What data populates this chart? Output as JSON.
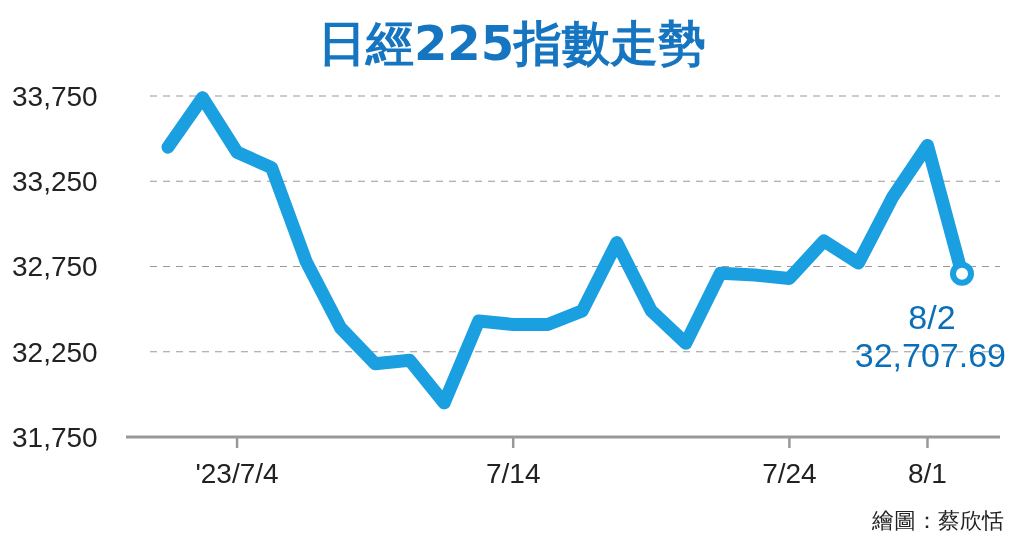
{
  "chart_data": {
    "type": "line",
    "title": "日經225指數走勢",
    "categories": [
      null,
      null,
      "'23/7/4",
      null,
      null,
      null,
      null,
      null,
      null,
      null,
      "7/14",
      null,
      null,
      null,
      null,
      null,
      null,
      null,
      "7/24",
      null,
      null,
      null,
      "8/1",
      null
    ],
    "series": [
      {
        "color": "#1a9fe0",
        "values": [
          33450,
          33740,
          33420,
          33330,
          32780,
          32390,
          32180,
          32200,
          31950,
          32430,
          32410,
          32410,
          32490,
          32890,
          32490,
          32300,
          32710,
          32700,
          32680,
          32900,
          32770,
          33160,
          33460,
          32707.69
        ]
      }
    ],
    "ylim": [
      31750,
      33750
    ],
    "yticks": [
      {
        "value": 31750,
        "label": "31,750"
      },
      {
        "value": 32250,
        "label": "32,250"
      },
      {
        "value": 32750,
        "label": "32,750"
      },
      {
        "value": 33250,
        "label": "33,250"
      },
      {
        "value": 33750,
        "label": "33,750"
      }
    ],
    "grid": "y",
    "marker": "none",
    "line_style": "solid",
    "annotations": [
      "8/2\n32,707.69",
      "繪圖：蔡欣恬"
    ]
  }
}
